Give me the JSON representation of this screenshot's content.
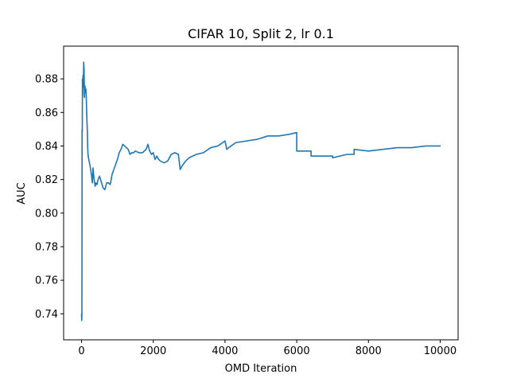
{
  "chart_data": {
    "type": "line",
    "title": "CIFAR 10, Split 2, lr 0.1",
    "xlabel": "OMD Iteration",
    "ylabel": "AUC",
    "xlim": [
      -500,
      10500
    ],
    "ylim": [
      0.7245,
      0.8995
    ],
    "xticks": [
      0,
      2000,
      4000,
      6000,
      8000,
      10000
    ],
    "xtick_labels": [
      "0",
      "2000",
      "4000",
      "6000",
      "8000",
      "10000"
    ],
    "yticks": [
      0.74,
      0.76,
      0.78,
      0.8,
      0.82,
      0.84,
      0.86,
      0.88
    ],
    "ytick_labels": [
      "0.74",
      "0.76",
      "0.78",
      "0.80",
      "0.82",
      "0.84",
      "0.86",
      "0.88"
    ],
    "grid": false,
    "series": [
      {
        "color": "#1f77b4",
        "x": [
          0,
          5,
          10,
          15,
          20,
          25,
          30,
          40,
          50,
          60,
          70,
          80,
          90,
          100,
          110,
          120,
          130,
          140,
          150,
          160,
          170,
          180,
          200,
          220,
          240,
          260,
          280,
          300,
          320,
          350,
          380,
          400,
          430,
          460,
          500,
          530,
          560,
          600,
          650,
          700,
          750,
          800,
          850,
          900,
          950,
          1000,
          1050,
          1100,
          1150,
          1200,
          1250,
          1300,
          1350,
          1400,
          1450,
          1500,
          1600,
          1700,
          1800,
          1850,
          1900,
          1950,
          2000,
          2050,
          2100,
          2150,
          2200,
          2300,
          2400,
          2500,
          2600,
          2700,
          2750,
          2800,
          2900,
          3000,
          3200,
          3400,
          3600,
          3800,
          4000,
          4050,
          4100,
          4300,
          4600,
          4900,
          5200,
          5500,
          5800,
          6000,
          6000,
          6200,
          6400,
          6400,
          6800,
          7000,
          7000,
          7400,
          7600,
          7600,
          8000,
          8400,
          8800,
          9200,
          9600,
          10000
        ],
        "y": [
          0.74,
          0.736,
          0.74,
          0.85,
          0.848,
          0.88,
          0.87,
          0.882,
          0.875,
          0.89,
          0.886,
          0.869,
          0.876,
          0.875,
          0.872,
          0.874,
          0.87,
          0.862,
          0.855,
          0.85,
          0.84,
          0.835,
          0.832,
          0.83,
          0.828,
          0.825,
          0.822,
          0.818,
          0.827,
          0.82,
          0.816,
          0.818,
          0.817,
          0.82,
          0.822,
          0.82,
          0.818,
          0.815,
          0.814,
          0.818,
          0.818,
          0.817,
          0.823,
          0.826,
          0.829,
          0.832,
          0.836,
          0.838,
          0.841,
          0.84,
          0.839,
          0.838,
          0.835,
          0.836,
          0.836,
          0.837,
          0.836,
          0.836,
          0.838,
          0.841,
          0.837,
          0.835,
          0.836,
          0.832,
          0.834,
          0.832,
          0.831,
          0.83,
          0.831,
          0.835,
          0.836,
          0.835,
          0.826,
          0.828,
          0.831,
          0.833,
          0.835,
          0.836,
          0.839,
          0.84,
          0.843,
          0.838,
          0.839,
          0.842,
          0.843,
          0.844,
          0.846,
          0.846,
          0.847,
          0.848,
          0.837,
          0.837,
          0.837,
          0.834,
          0.834,
          0.834,
          0.833,
          0.835,
          0.835,
          0.838,
          0.837,
          0.838,
          0.839,
          0.839,
          0.84,
          0.84
        ]
      }
    ]
  }
}
